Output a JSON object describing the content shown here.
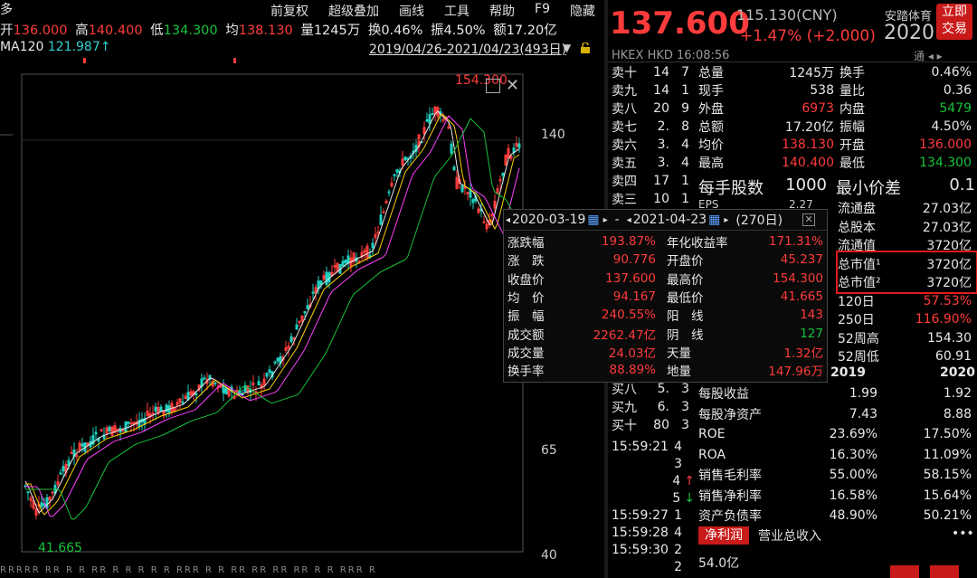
{
  "topbar": {
    "title_fragment": "多",
    "open_label": "开",
    "open": "136.000",
    "high_label": "高",
    "high": "140.400",
    "low_label": "低",
    "low": "134.300",
    "avg_label": "均",
    "avg": "138.130",
    "vol_label": "量",
    "vol": "1245万",
    "turn_label": "换",
    "turn": "0.46%",
    "amp_label": "振",
    "amp": "4.50%",
    "amt_label": "额",
    "amt": "17.20亿",
    "menu": [
      "前复权",
      "超级叠加",
      "画线",
      "工具",
      "帮助",
      "F9",
      "隐藏"
    ]
  },
  "indicator": {
    "ma_label": "MA120",
    "ma_value": "121.987↑",
    "date_range": "2019/04/26-2021/04/23(493日)"
  },
  "axis": {
    "ticks": [
      "140",
      "65",
      "40"
    ]
  },
  "chart_annotations": {
    "max_label": "154.300",
    "min_label": "41.665"
  },
  "popup": {
    "start_date": "2020-03-19",
    "dash": "-",
    "end_date": "2021-04-23",
    "days": "(270日)",
    "rows": [
      [
        "涨跌幅",
        "193.87%",
        "年化收益率",
        "171.31%"
      ],
      [
        "涨　跌",
        "90.776",
        "开盘价",
        "45.237"
      ],
      [
        "收盘价",
        "137.600",
        "最高价",
        "154.300"
      ],
      [
        "均　价",
        "94.167",
        "最低价",
        "41.665"
      ],
      [
        "振　幅",
        "240.55%",
        "阳　线",
        "143"
      ],
      [
        "成交额",
        "2262.47亿",
        "阴　线",
        "127"
      ],
      [
        "成交量",
        "24.03亿",
        "天量",
        "1.32亿"
      ],
      [
        "换手率",
        "88.89%",
        "地量",
        "147.96万"
      ]
    ]
  },
  "quote": {
    "price": "137.600",
    "prev": "115.130(CNY)",
    "chg_pct": "+1.47%",
    "chg_abs": "(+2.000)",
    "name": "安踏体育",
    "year": "2020",
    "btn": "立即交易",
    "market": "HKEX",
    "currency": "HKD",
    "time": "16:08:56",
    "tong": "通",
    "asks": [
      [
        "卖十",
        "14",
        "7"
      ],
      [
        "卖九",
        "14",
        "1"
      ],
      [
        "卖八",
        "20",
        "9"
      ],
      [
        "卖七",
        "2.",
        "8"
      ],
      [
        "卖六",
        "3.",
        "4"
      ],
      [
        "卖五",
        "3.",
        "4"
      ],
      [
        "卖四",
        "17",
        "1"
      ],
      [
        "卖三",
        "10",
        "1"
      ]
    ],
    "stats": [
      [
        "总量",
        "1245万",
        "换手",
        "0.46%"
      ],
      [
        "现手",
        "538",
        "量比",
        "0.36"
      ],
      [
        "外盘",
        "6973",
        "内盘",
        "5479"
      ],
      [
        "总额",
        "17.20亿",
        "振幅",
        "4.50%"
      ],
      [
        "均价",
        "138.130",
        "开盘",
        "136.000"
      ],
      [
        "最高",
        "140.400",
        "最低",
        "134.300"
      ]
    ],
    "lot_label": "每手股数",
    "lot": "1000",
    "tick_label": "最小价差",
    "tick": "0.1",
    "eps_partial": "EPS",
    "eps_value": "2.27",
    "caps": [
      [
        "流通盘",
        "27.03亿"
      ],
      [
        "总股本",
        "27.03亿"
      ],
      [
        "流通值",
        "3720亿"
      ],
      [
        "总市值¹",
        "3720亿"
      ],
      [
        "总市值²",
        "3720亿"
      ],
      [
        "120日",
        "57.53%"
      ],
      [
        "250日",
        "116.90%"
      ],
      [
        "52周高",
        "154.30"
      ],
      [
        "52周低",
        "60.91"
      ]
    ],
    "years": [
      "2019",
      "2020"
    ],
    "fin": [
      [
        "每股收益",
        "1.99",
        "1.92"
      ],
      [
        "每股净资产",
        "7.43",
        "8.88"
      ],
      [
        "ROE",
        "23.69%",
        "17.50%"
      ],
      [
        "ROA",
        "16.30%",
        "11.09%"
      ],
      [
        "销售毛利率",
        "55.00%",
        "58.15%"
      ],
      [
        "销售净利率",
        "16.58%",
        "15.64%"
      ],
      [
        "资产负债率",
        "48.90%",
        "50.21%"
      ]
    ],
    "bids": [
      [
        "买八",
        "5.",
        "3"
      ],
      [
        "买九",
        "6.",
        "3"
      ],
      [
        "买十",
        "80",
        "3"
      ]
    ],
    "ticks": [
      [
        "15:59:21",
        "4"
      ],
      [
        "",
        "3"
      ],
      [
        "",
        "4"
      ],
      [
        "",
        "5"
      ],
      [
        "15:59:27",
        "1"
      ],
      [
        "15:59:28",
        "4"
      ],
      [
        "15:59:30",
        "2"
      ],
      [
        "",
        "2"
      ]
    ],
    "tab_active": "净利润",
    "tab_other": "营业总收入",
    "more": "•••",
    "profit_label": "54.0亿"
  }
}
